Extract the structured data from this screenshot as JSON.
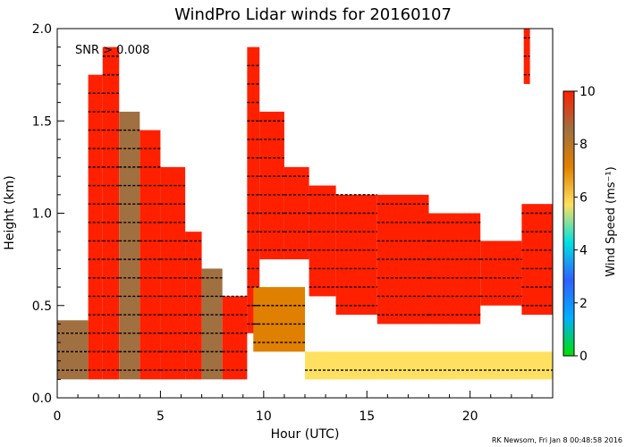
{
  "chart_data": {
    "type": "heatmap",
    "title": "WindPro Lidar winds for 20160107",
    "xlabel": "Hour (UTC)",
    "ylabel": "Height (km)",
    "xlim": [
      0,
      24
    ],
    "ylim": [
      0.0,
      2.0
    ],
    "x_ticks": [
      "0",
      "5",
      "10",
      "15",
      "20"
    ],
    "x_tick_values": [
      0,
      5,
      10,
      15,
      20
    ],
    "y_ticks": [
      "0.0",
      "0.5",
      "1.0",
      "1.5",
      "2.0"
    ],
    "y_tick_values": [
      0.0,
      0.5,
      1.0,
      1.5,
      2.0
    ],
    "annotation": "SNR > 0.008",
    "colorbar": {
      "label": "Wind Speed (ms⁻¹)",
      "range": [
        0,
        10
      ],
      "ticks": [
        "0",
        "2",
        "4",
        "6",
        "8",
        "10"
      ],
      "tick_values": [
        0,
        2,
        4,
        6,
        8,
        10
      ],
      "colors": [
        "#00e000",
        "#00b0ff",
        "#3060ff",
        "#00e0e0",
        "#ffe060",
        "#e08000",
        "#a07040",
        "#ff2000"
      ]
    },
    "credit": "RK Newsom, Fri Jan  8 00:48:58 2016",
    "coverage": [
      {
        "x0": 0.0,
        "x1": 1.5,
        "y0": 0.1,
        "y1": 0.42,
        "speed": 9
      },
      {
        "x0": 1.5,
        "x1": 2.2,
        "y0": 0.1,
        "y1": 1.75,
        "speed": 10
      },
      {
        "x0": 2.2,
        "x1": 3.0,
        "y0": 0.1,
        "y1": 1.9,
        "speed": 10
      },
      {
        "x0": 3.0,
        "x1": 4.0,
        "y0": 0.1,
        "y1": 1.55,
        "speed": 9
      },
      {
        "x0": 4.0,
        "x1": 5.0,
        "y0": 0.1,
        "y1": 1.45,
        "speed": 10
      },
      {
        "x0": 5.0,
        "x1": 6.2,
        "y0": 0.1,
        "y1": 1.25,
        "speed": 10
      },
      {
        "x0": 6.2,
        "x1": 7.0,
        "y0": 0.1,
        "y1": 0.9,
        "speed": 10
      },
      {
        "x0": 7.0,
        "x1": 8.0,
        "y0": 0.1,
        "y1": 0.7,
        "speed": 9
      },
      {
        "x0": 8.0,
        "x1": 9.2,
        "y0": 0.1,
        "y1": 0.55,
        "speed": 10
      },
      {
        "x0": 9.2,
        "x1": 9.8,
        "y0": 0.35,
        "y1": 1.9,
        "speed": 10
      },
      {
        "x0": 9.8,
        "x1": 11.0,
        "y0": 0.75,
        "y1": 1.55,
        "speed": 10
      },
      {
        "x0": 11.0,
        "x1": 12.2,
        "y0": 0.75,
        "y1": 1.25,
        "speed": 10
      },
      {
        "x0": 12.2,
        "x1": 13.5,
        "y0": 0.55,
        "y1": 1.15,
        "speed": 10
      },
      {
        "x0": 13.5,
        "x1": 15.5,
        "y0": 0.45,
        "y1": 1.1,
        "speed": 10
      },
      {
        "x0": 15.5,
        "x1": 18.0,
        "y0": 0.4,
        "y1": 1.1,
        "speed": 10
      },
      {
        "x0": 18.0,
        "x1": 20.5,
        "y0": 0.4,
        "y1": 1.0,
        "speed": 10
      },
      {
        "x0": 20.5,
        "x1": 22.5,
        "y0": 0.5,
        "y1": 0.85,
        "speed": 10
      },
      {
        "x0": 22.5,
        "x1": 24.0,
        "y0": 0.45,
        "y1": 1.05,
        "speed": 10
      },
      {
        "x0": 12.0,
        "x1": 24.0,
        "y0": 0.1,
        "y1": 0.25,
        "speed": 6
      },
      {
        "x0": 9.5,
        "x1": 12.0,
        "y0": 0.25,
        "y1": 0.6,
        "speed": 7
      },
      {
        "x0": 22.6,
        "x1": 22.9,
        "y0": 1.7,
        "y1": 2.0,
        "speed": 10
      }
    ]
  }
}
